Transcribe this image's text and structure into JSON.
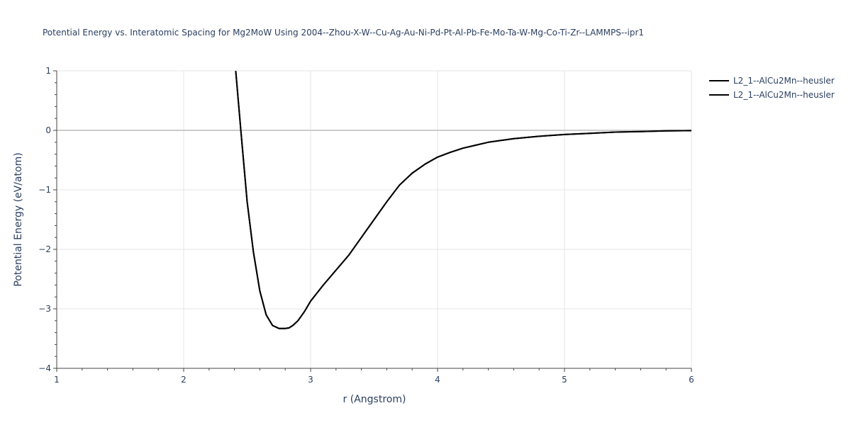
{
  "chart_data": {
    "type": "line",
    "title": "Potential Energy vs. Interatomic Spacing for Mg2MoW Using 2004--Zhou-X-W--Cu-Ag-Au-Ni-Pd-Pt-Al-Pb-Fe-Mo-Ta-W-Mg-Co-Ti-Zr--LAMMPS--ipr1",
    "xlabel": "r (Angstrom)",
    "ylabel": "Potential Energy (eV/atom)",
    "xlim": [
      1,
      6
    ],
    "ylim": [
      -4,
      1
    ],
    "x_ticks": [
      "1",
      "2",
      "3",
      "4",
      "5",
      "6"
    ],
    "y_ticks": [
      "1",
      "0",
      "−1",
      "−2",
      "−3",
      "−4"
    ],
    "grid": true,
    "legend_position": "top-right",
    "colors": {
      "line": "#000000",
      "grid": "#e5e5e5",
      "zeroline": "#cccccc",
      "text": "#2a3f5f"
    },
    "series": [
      {
        "name": "L2_1--AlCu2Mn--heusler",
        "x": [
          2.41,
          2.45,
          2.5,
          2.55,
          2.6,
          2.65,
          2.7,
          2.75,
          2.8,
          2.83,
          2.86,
          2.9,
          2.95,
          3.0,
          3.1,
          3.2,
          3.3,
          3.4,
          3.5,
          3.6,
          3.7,
          3.8,
          3.9,
          4.0,
          4.1,
          4.2,
          4.3,
          4.4,
          4.6,
          4.8,
          5.0,
          5.2,
          5.4,
          5.6,
          5.8,
          6.0
        ],
        "y": [
          1.0,
          0.0,
          -1.2,
          -2.05,
          -2.7,
          -3.1,
          -3.28,
          -3.33,
          -3.33,
          -3.32,
          -3.28,
          -3.2,
          -3.05,
          -2.87,
          -2.6,
          -2.35,
          -2.1,
          -1.8,
          -1.5,
          -1.2,
          -0.92,
          -0.72,
          -0.57,
          -0.45,
          -0.37,
          -0.3,
          -0.25,
          -0.2,
          -0.14,
          -0.1,
          -0.07,
          -0.05,
          -0.03,
          -0.02,
          -0.01,
          -0.005
        ]
      },
      {
        "name": "L2_1--AlCu2Mn--heusler",
        "x": [
          2.41,
          2.45,
          2.5,
          2.55,
          2.6,
          2.65,
          2.7,
          2.75,
          2.8,
          2.83,
          2.86,
          2.9,
          2.95,
          3.0,
          3.1,
          3.2,
          3.3,
          3.4,
          3.5,
          3.6,
          3.7,
          3.8,
          3.9,
          4.0,
          4.1,
          4.2,
          4.3,
          4.4,
          4.6,
          4.8,
          5.0,
          5.2,
          5.4,
          5.6,
          5.8,
          6.0
        ],
        "y": [
          1.0,
          0.0,
          -1.2,
          -2.05,
          -2.7,
          -3.1,
          -3.28,
          -3.33,
          -3.33,
          -3.32,
          -3.28,
          -3.2,
          -3.05,
          -2.87,
          -2.6,
          -2.35,
          -2.1,
          -1.8,
          -1.5,
          -1.2,
          -0.92,
          -0.72,
          -0.57,
          -0.45,
          -0.37,
          -0.3,
          -0.25,
          -0.2,
          -0.14,
          -0.1,
          -0.07,
          -0.05,
          -0.03,
          -0.02,
          -0.01,
          -0.005
        ]
      }
    ]
  }
}
